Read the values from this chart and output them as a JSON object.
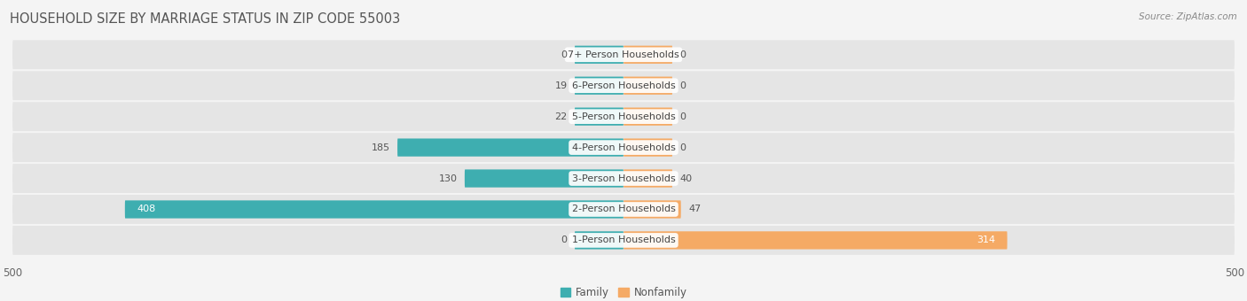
{
  "title": "HOUSEHOLD SIZE BY MARRIAGE STATUS IN ZIP CODE 55003",
  "source": "Source: ZipAtlas.com",
  "categories": [
    "7+ Person Households",
    "6-Person Households",
    "5-Person Households",
    "4-Person Households",
    "3-Person Households",
    "2-Person Households",
    "1-Person Households"
  ],
  "family_values": [
    0,
    19,
    22,
    185,
    130,
    408,
    0
  ],
  "nonfamily_values": [
    0,
    0,
    0,
    0,
    40,
    47,
    314
  ],
  "family_color": "#3EAEB0",
  "nonfamily_color": "#F5AA65",
  "xlim": 500,
  "bg_color": "#f4f4f4",
  "bar_bg_color": "#e5e5e5",
  "title_fontsize": 10.5,
  "source_fontsize": 7.5,
  "label_fontsize": 8,
  "value_fontsize": 8,
  "tick_fontsize": 8.5,
  "min_bar_width": 40
}
